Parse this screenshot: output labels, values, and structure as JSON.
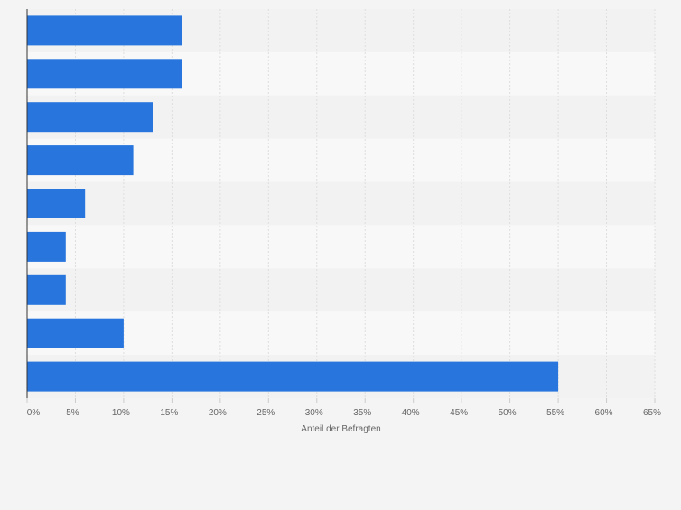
{
  "chart_data": {
    "type": "bar",
    "orientation": "horizontal",
    "categories": [
      "",
      "",
      "",
      "",
      "",
      "",
      "",
      "",
      ""
    ],
    "values": [
      16,
      16,
      13,
      11,
      6,
      4,
      4,
      10,
      55
    ],
    "xlabel": "Anteil der Befragten",
    "ylabel": "",
    "xlim": [
      0,
      65
    ],
    "x_ticks": [
      "0%",
      "5%",
      "10%",
      "15%",
      "20%",
      "25%",
      "30%",
      "35%",
      "40%",
      "45%",
      "50%",
      "55%",
      "60%",
      "65%"
    ],
    "tick_step": 5,
    "grid": true,
    "colors": {
      "bar": "#2876dd",
      "band_a": "#f2f2f2",
      "band_b": "#f8f8f8",
      "background": "#f4f4f4",
      "gridline": "#dedede",
      "axis": "#333333",
      "tick_text": "#666666"
    }
  }
}
